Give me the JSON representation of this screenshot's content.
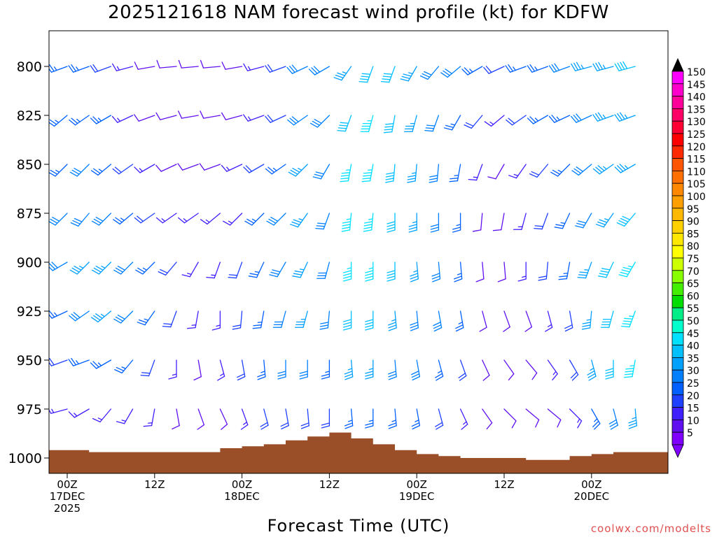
{
  "chart_data": {
    "type": "wind_barb_time_height",
    "title": "2025121618 NAM forecast wind profile (kt) for KDFW",
    "xlabel": "Forecast Time (UTC)",
    "ylabel": "",
    "credit": "coolwx.com/modelts",
    "x_unit": "hours since 2025-12-17 00Z",
    "xlim": [
      -2.5,
      82.5
    ],
    "ylim": [
      1010,
      780
    ],
    "y_unit": "hPa",
    "x_ticks": [
      {
        "t": 0,
        "labels": [
          "00Z",
          "17DEC",
          "2025"
        ]
      },
      {
        "t": 12,
        "labels": [
          "12Z"
        ]
      },
      {
        "t": 24,
        "labels": [
          "00Z",
          "18DEC"
        ]
      },
      {
        "t": 36,
        "labels": [
          "12Z"
        ]
      },
      {
        "t": 48,
        "labels": [
          "00Z",
          "19DEC"
        ]
      },
      {
        "t": 60,
        "labels": [
          "12Z"
        ]
      },
      {
        "t": 72,
        "labels": [
          "00Z",
          "20DEC"
        ]
      }
    ],
    "y_ticks": [
      {
        "p": 800,
        "label": "800"
      },
      {
        "p": 825,
        "label": "825"
      },
      {
        "p": 850,
        "label": "850"
      },
      {
        "p": 875,
        "label": "875"
      },
      {
        "p": 900,
        "label": "900"
      },
      {
        "p": 925,
        "label": "925"
      },
      {
        "p": 950,
        "label": "950"
      },
      {
        "p": 975,
        "label": "975"
      },
      {
        "p": 1000,
        "label": "1000"
      }
    ],
    "colorbar": {
      "levels": [
        "150",
        "145",
        "140",
        "135",
        "130",
        "125",
        "120",
        "115",
        "110",
        "105",
        "100",
        "95",
        "90",
        "85",
        "80",
        "75",
        "70",
        "65",
        "60",
        "55",
        "50",
        "45",
        "40",
        "35",
        "30",
        "25",
        "20",
        "15",
        "10",
        "5"
      ],
      "colors": [
        "#ff00ff",
        "#ff00cc",
        "#ff0099",
        "#ff0066",
        "#ff0033",
        "#ff0000",
        "#ff2a00",
        "#ff5500",
        "#ff7000",
        "#ff8800",
        "#ffa000",
        "#ffb800",
        "#ffd000",
        "#ffe800",
        "#ffff00",
        "#ccff00",
        "#88ff00",
        "#44ee00",
        "#00dd00",
        "#00ee88",
        "#00ffcc",
        "#00e0ff",
        "#00c0ff",
        "#00a0ff",
        "#0080ff",
        "#0060ff",
        "#2040ff",
        "#4020ff",
        "#6010f0",
        "#8000ff"
      ],
      "top_arrow_color": "#000000",
      "bottom_arrow_color": "#8000ff"
    },
    "surface_pressure": {
      "times": [
        -2.5,
        0,
        3,
        6,
        9,
        12,
        15,
        18,
        21,
        24,
        27,
        30,
        33,
        36,
        37,
        39,
        42,
        45,
        48,
        51,
        54,
        57,
        60,
        63,
        66,
        69,
        72,
        75,
        78,
        82.5
      ],
      "pressure": [
        996,
        996,
        997,
        997,
        997,
        997,
        997,
        997,
        995,
        994,
        993,
        991,
        989,
        987,
        987,
        990,
        993,
        996,
        998,
        999,
        1000,
        1000,
        1000,
        1001,
        1001,
        999,
        998,
        997,
        997,
        997
      ],
      "fill": "#9b4f29"
    },
    "barb_times": [
      0,
      3,
      6,
      9,
      12,
      15,
      18,
      21,
      24,
      27,
      30,
      33,
      36,
      39,
      42,
      45,
      48,
      51,
      54,
      57,
      60,
      63,
      66,
      69,
      72,
      75,
      78
    ],
    "barb_levels": [
      800,
      825,
      850,
      875,
      900,
      925,
      950,
      975
    ],
    "wind_direction_deg": [
      [
        250,
        230,
        225,
        225,
        240,
        245,
        250,
        255
      ],
      [
        250,
        235,
        225,
        220,
        225,
        235,
        250,
        240
      ],
      [
        250,
        240,
        230,
        225,
        225,
        230,
        240,
        220
      ],
      [
        255,
        245,
        235,
        230,
        225,
        225,
        220,
        210
      ],
      [
        260,
        250,
        240,
        235,
        225,
        215,
        200,
        190
      ],
      [
        265,
        255,
        245,
        235,
        220,
        200,
        180,
        170
      ],
      [
        265,
        260,
        250,
        235,
        210,
        190,
        170,
        160
      ],
      [
        265,
        260,
        250,
        230,
        200,
        180,
        165,
        155
      ],
      [
        260,
        255,
        245,
        225,
        200,
        185,
        170,
        160
      ],
      [
        255,
        250,
        240,
        225,
        205,
        190,
        175,
        165
      ],
      [
        250,
        245,
        235,
        225,
        210,
        195,
        180,
        170
      ],
      [
        245,
        235,
        225,
        215,
        205,
        195,
        180,
        175
      ],
      [
        240,
        225,
        210,
        200,
        195,
        185,
        180,
        180
      ],
      [
        215,
        200,
        190,
        185,
        180,
        180,
        175,
        175
      ],
      [
        200,
        195,
        190,
        185,
        180,
        180,
        180,
        180
      ],
      [
        200,
        190,
        185,
        180,
        180,
        175,
        175,
        175
      ],
      [
        210,
        195,
        185,
        180,
        175,
        175,
        170,
        170
      ],
      [
        220,
        200,
        185,
        180,
        175,
        170,
        165,
        165
      ],
      [
        230,
        210,
        190,
        180,
        175,
        170,
        160,
        155
      ],
      [
        240,
        220,
        200,
        185,
        175,
        165,
        155,
        145
      ],
      [
        245,
        230,
        210,
        190,
        175,
        160,
        145,
        135
      ],
      [
        250,
        235,
        215,
        195,
        180,
        160,
        140,
        130
      ],
      [
        250,
        240,
        220,
        200,
        185,
        165,
        145,
        130
      ],
      [
        250,
        245,
        225,
        205,
        190,
        170,
        150,
        135
      ],
      [
        255,
        245,
        230,
        210,
        200,
        185,
        165,
        150
      ],
      [
        255,
        250,
        235,
        215,
        205,
        195,
        180,
        165
      ],
      [
        255,
        250,
        240,
        220,
        210,
        200,
        190,
        175
      ]
    ],
    "wind_speed_kt": [
      [
        25,
        25,
        25,
        30,
        30,
        25,
        20,
        15
      ],
      [
        25,
        25,
        30,
        30,
        35,
        30,
        25,
        15
      ],
      [
        20,
        25,
        25,
        30,
        35,
        35,
        25,
        15
      ],
      [
        15,
        15,
        20,
        25,
        30,
        30,
        25,
        15
      ],
      [
        10,
        10,
        15,
        20,
        25,
        25,
        20,
        15
      ],
      [
        10,
        10,
        10,
        15,
        20,
        20,
        15,
        10
      ],
      [
        10,
        10,
        10,
        15,
        15,
        15,
        10,
        10
      ],
      [
        10,
        10,
        10,
        15,
        15,
        15,
        15,
        10
      ],
      [
        10,
        10,
        15,
        15,
        20,
        20,
        20,
        15
      ],
      [
        15,
        15,
        20,
        25,
        25,
        25,
        25,
        20
      ],
      [
        20,
        20,
        25,
        30,
        30,
        30,
        30,
        20
      ],
      [
        30,
        30,
        35,
        35,
        35,
        35,
        30,
        20
      ],
      [
        30,
        30,
        30,
        30,
        30,
        30,
        25,
        20
      ],
      [
        35,
        40,
        45,
        45,
        45,
        40,
        35,
        25
      ],
      [
        40,
        45,
        45,
        45,
        45,
        40,
        35,
        25
      ],
      [
        40,
        40,
        40,
        40,
        40,
        35,
        30,
        25
      ],
      [
        35,
        35,
        35,
        35,
        35,
        30,
        30,
        25
      ],
      [
        30,
        30,
        30,
        30,
        30,
        30,
        25,
        20
      ],
      [
        30,
        25,
        25,
        25,
        25,
        25,
        20,
        15
      ],
      [
        25,
        20,
        15,
        10,
        10,
        10,
        10,
        10
      ],
      [
        20,
        15,
        10,
        10,
        10,
        10,
        10,
        10
      ],
      [
        25,
        20,
        15,
        15,
        15,
        10,
        10,
        10
      ],
      [
        25,
        25,
        20,
        20,
        20,
        15,
        15,
        10
      ],
      [
        30,
        25,
        25,
        25,
        25,
        20,
        20,
        15
      ],
      [
        35,
        30,
        30,
        30,
        35,
        35,
        35,
        25
      ],
      [
        35,
        35,
        35,
        35,
        40,
        40,
        40,
        30
      ],
      [
        40,
        35,
        35,
        40,
        45,
        45,
        45,
        35
      ]
    ]
  }
}
